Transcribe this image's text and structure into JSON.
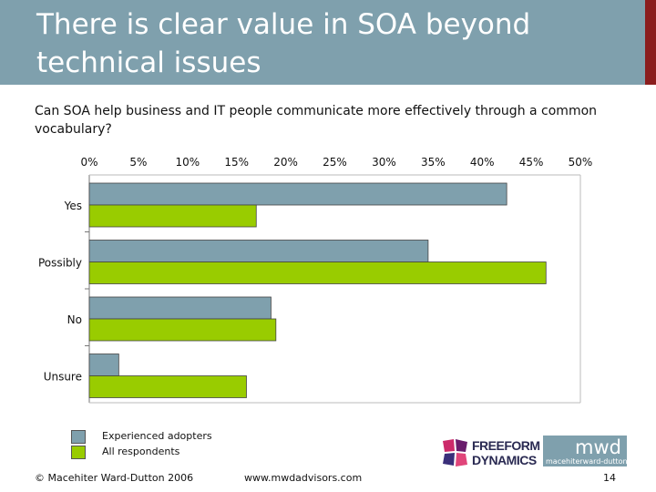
{
  "slide": {
    "title": "There is clear value in SOA beyond technical issues",
    "subtitle": "Can SOA help business and IT people communicate more effectively through a common vocabulary?"
  },
  "chart_data": {
    "type": "bar",
    "orientation": "horizontal",
    "title": "Can SOA help business and IT people communicate more effectively through a common vocabulary?",
    "categories": [
      "Yes",
      "Possibly",
      "No",
      "Unsure"
    ],
    "series": [
      {
        "name": "Experienced adopters",
        "values": [
          42.5,
          34.5,
          18.5,
          3
        ]
      },
      {
        "name": "All respondents",
        "values": [
          17,
          46.5,
          19,
          16
        ]
      }
    ],
    "xticks": [
      "0%",
      "5%",
      "10%",
      "15%",
      "20%",
      "25%",
      "30%",
      "35%",
      "40%",
      "45%",
      "50%"
    ],
    "xlim": [
      0,
      50
    ],
    "xlabel": "",
    "ylabel": "",
    "grid": false,
    "legend_position": "bottom-left",
    "colors": [
      "#7fa0ad",
      "#99cc00"
    ]
  },
  "legend": {
    "items": [
      {
        "label": "Experienced adopters",
        "color": "#7fa0ad"
      },
      {
        "label": "All respondents",
        "color": "#99cc00"
      }
    ]
  },
  "footer": {
    "copyright": "© Macehiter Ward-Dutton 2006",
    "website": "www.mwdadvisors.com",
    "page_number": "14"
  },
  "logos": {
    "freeform": {
      "line1": "FREEFORM",
      "line2": "DYNAMICS"
    },
    "mwd": {
      "text": "mwd",
      "subtext": "macehiterward-dutton"
    }
  },
  "colors": {
    "header_bg": "#7fa0ad",
    "header_accent": "#8b1e1e",
    "series_1": "#7fa0ad",
    "series_2": "#99cc00"
  }
}
